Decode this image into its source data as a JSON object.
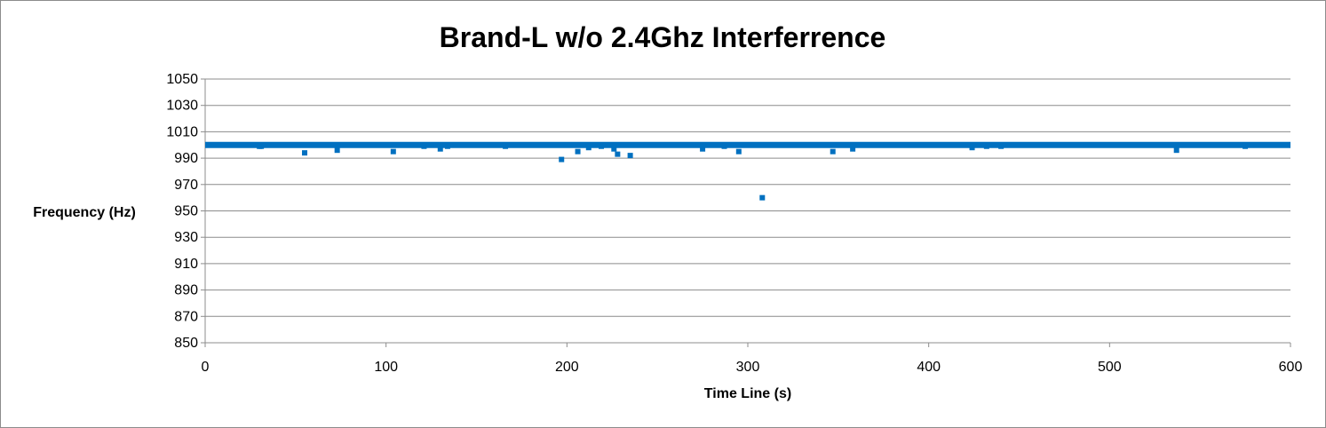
{
  "chart_data": {
    "type": "scatter",
    "title": "Brand-L w/o 2.4Ghz Interferrence",
    "xlabel": "Time Line (s)",
    "ylabel": "Frequency (Hz)",
    "xlim": [
      0,
      600
    ],
    "ylim": [
      850,
      1050
    ],
    "x_ticks": [
      0,
      100,
      200,
      300,
      400,
      500,
      600
    ],
    "y_ticks": [
      850,
      870,
      890,
      910,
      930,
      950,
      970,
      990,
      1010,
      1030,
      1050
    ],
    "grid": "horizontal",
    "legend": "none",
    "series_color": "#0070C0",
    "baseline": {
      "y": 1000,
      "x_range": [
        0,
        600
      ]
    },
    "outliers": [
      [
        30,
        999
      ],
      [
        31,
        999
      ],
      [
        55,
        994
      ],
      [
        73,
        996
      ],
      [
        104,
        995
      ],
      [
        121,
        999
      ],
      [
        130,
        997
      ],
      [
        134,
        999
      ],
      [
        166,
        999
      ],
      [
        197,
        989
      ],
      [
        206,
        995
      ],
      [
        212,
        998
      ],
      [
        219,
        999
      ],
      [
        226,
        997
      ],
      [
        228,
        993
      ],
      [
        235,
        992
      ],
      [
        275,
        997
      ],
      [
        287,
        999
      ],
      [
        295,
        995
      ],
      [
        308,
        960
      ],
      [
        347,
        995
      ],
      [
        358,
        997
      ],
      [
        424,
        998
      ],
      [
        432,
        999
      ],
      [
        440,
        999
      ],
      [
        537,
        996
      ],
      [
        575,
        999
      ]
    ]
  }
}
